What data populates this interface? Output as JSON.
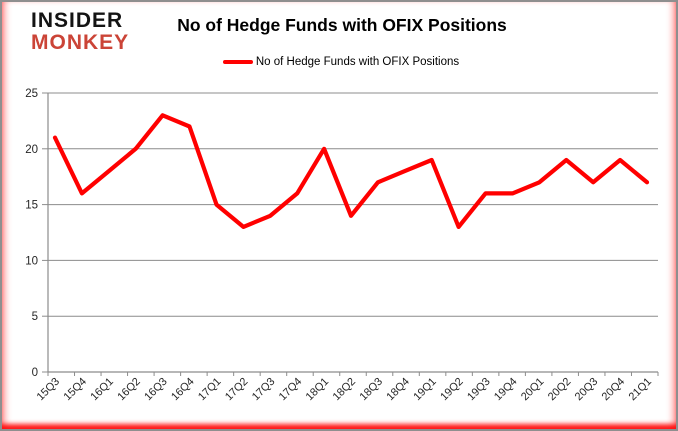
{
  "header": {
    "logo_line1": "INSIDER",
    "logo_line2": "MONKEY",
    "title": "No of Hedge Funds with OFIX Positions"
  },
  "legend": {
    "label": "No of Hedge Funds with OFIX Positions"
  },
  "colors": {
    "series_red": "#ff0000",
    "logo_black": "#141414",
    "logo_red": "#cb4437",
    "gridline": "#8c8c8c",
    "axis_line": "#8c8c8c",
    "tick_label": "#262626",
    "frame_gray": "#8f8f8f"
  },
  "chart_data": {
    "type": "line",
    "title": "No of Hedge Funds with OFIX Positions",
    "xlabel": "",
    "ylabel": "",
    "categories": [
      "15Q3",
      "15Q4",
      "16Q1",
      "16Q2",
      "16Q3",
      "16Q4",
      "17Q1",
      "17Q2",
      "17Q3",
      "17Q4",
      "18Q1",
      "18Q2",
      "18Q3",
      "18Q4",
      "19Q1",
      "19Q2",
      "19Q3",
      "19Q4",
      "20Q1",
      "20Q2",
      "20Q3",
      "20Q4",
      "21Q1"
    ],
    "series": [
      {
        "name": "No of Hedge Funds with OFIX Positions",
        "color": "#ff0000",
        "values": [
          21,
          16,
          18,
          20,
          23,
          22,
          15,
          13,
          14,
          16,
          20,
          14,
          17,
          18,
          19,
          13,
          16,
          16,
          17,
          19,
          17,
          19,
          17
        ]
      }
    ],
    "ylim": [
      0,
      25
    ],
    "yticks": [
      0,
      5,
      10,
      15,
      20,
      25
    ],
    "grid": true,
    "legend_position": "top-center"
  }
}
